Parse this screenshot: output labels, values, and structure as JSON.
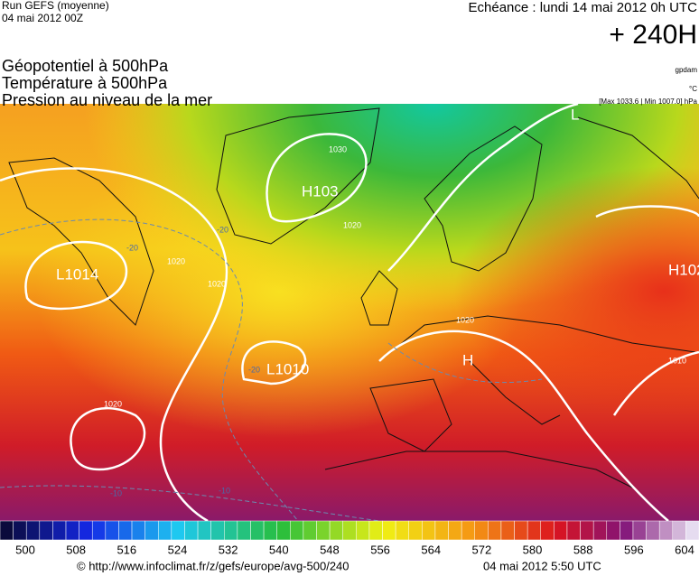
{
  "header": {
    "run": "Run GEFS (moyenne)",
    "date": "04 mai 2012 00Z",
    "echeance": "Echéance : lundi 14 mai 2012 0h UTC",
    "lead": "+ 240H"
  },
  "titles": [
    "Géopotentiel à 500hPa",
    "Température à 500hPa",
    "Pression au niveau de la mer"
  ],
  "units": {
    "geopotential": "gpdam",
    "temperature": "°C",
    "pressure": "[Max 1033.6 | Min 1007.0] hPa"
  },
  "map_labels": {
    "centers": [
      "L1014",
      "H103",
      "L1010",
      "H",
      "L",
      "H102"
    ],
    "isobars": [
      "1030",
      "1020",
      "1020",
      "1020",
      "1020",
      "1020",
      "1010"
    ],
    "isotherms": [
      "-20",
      "-20",
      "-20",
      "-10",
      "-10"
    ]
  },
  "colorbar": {
    "labels": [
      "500",
      "508",
      "516",
      "524",
      "532",
      "540",
      "548",
      "556",
      "564",
      "572",
      "580",
      "588",
      "596",
      "604"
    ]
  },
  "footer": {
    "source": "© http://www.infoclimat.fr/z/gefs/europe/avg-500/240",
    "generated": "04 mai 2012  5:50 UTC"
  }
}
